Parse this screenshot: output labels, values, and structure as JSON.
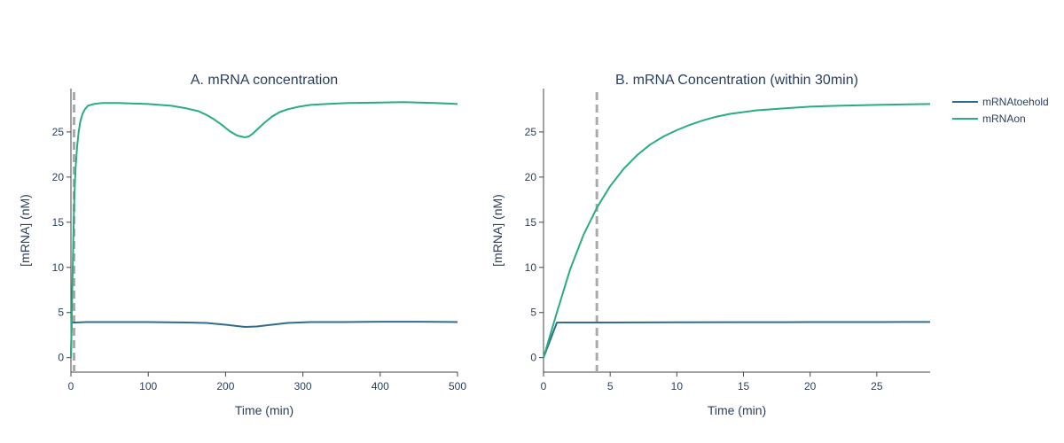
{
  "chart_data": [
    {
      "type": "line",
      "title": "A. mRNA concentration",
      "xlabel": "Time (min)",
      "ylabel": "[mRNA] (nM)",
      "xlim": [
        0,
        500
      ],
      "ylim": [
        -1.6,
        29.8
      ],
      "xticks": [
        0,
        100,
        200,
        300,
        400,
        500
      ],
      "yticks": [
        0,
        5,
        10,
        15,
        20,
        25
      ],
      "xtick_labels": [
        "0",
        "100",
        "200",
        "300",
        "400",
        "500"
      ],
      "ytick_labels": [
        "0",
        "5",
        "10",
        "15",
        "20",
        "25"
      ],
      "vline_x": 4,
      "grid": false,
      "series": [
        {
          "name": "mRNAtoehold",
          "color": "#2e6d8e",
          "x": [
            0,
            1,
            2,
            5,
            20,
            50,
            100,
            150,
            175,
            200,
            225,
            240,
            260,
            280,
            310,
            350,
            400,
            450,
            500
          ],
          "y": [
            0,
            3.9,
            3.9,
            3.9,
            3.95,
            3.95,
            3.95,
            3.9,
            3.85,
            3.65,
            3.4,
            3.45,
            3.65,
            3.85,
            3.95,
            3.95,
            3.98,
            3.98,
            3.95
          ]
        },
        {
          "name": "mRNAon",
          "color": "#2aab84",
          "x": [
            0,
            1,
            2,
            3,
            4,
            5,
            6,
            8,
            10,
            12,
            15,
            18,
            22,
            26,
            30,
            40,
            60,
            100,
            130,
            150,
            165,
            175,
            185,
            195,
            205,
            215,
            225,
            230,
            235,
            240,
            250,
            260,
            270,
            280,
            295,
            310,
            330,
            360,
            400,
            430,
            470,
            500
          ],
          "y": [
            0,
            3.9,
            8.5,
            12.8,
            16.6,
            19.0,
            21.0,
            23.4,
            25.0,
            26.1,
            27.0,
            27.5,
            27.9,
            28.0,
            28.1,
            28.2,
            28.2,
            28.1,
            27.9,
            27.6,
            27.3,
            26.9,
            26.4,
            25.8,
            25.1,
            24.6,
            24.4,
            24.5,
            24.8,
            25.2,
            26.0,
            26.7,
            27.2,
            27.5,
            27.8,
            28.0,
            28.1,
            28.2,
            28.25,
            28.3,
            28.2,
            28.1
          ]
        }
      ]
    },
    {
      "type": "line",
      "title": "B. mRNA Concentration (within 30min)",
      "xlabel": "Time (min)",
      "ylabel": "[mRNA] (nM)",
      "xlim": [
        0,
        29
      ],
      "ylim": [
        -1.6,
        29.8
      ],
      "xticks": [
        0,
        5,
        10,
        15,
        20,
        25
      ],
      "yticks": [
        0,
        5,
        10,
        15,
        20,
        25
      ],
      "xtick_labels": [
        "0",
        "5",
        "10",
        "15",
        "20",
        "25"
      ],
      "ytick_labels": [
        "0",
        "5",
        "10",
        "15",
        "20",
        "25"
      ],
      "vline_x": 4,
      "grid": false,
      "legend": "outside-right",
      "series": [
        {
          "name": "mRNAtoehold",
          "color": "#2e6d8e",
          "x": [
            0,
            1,
            2,
            5,
            10,
            15,
            20,
            25,
            29
          ],
          "y": [
            0,
            3.88,
            3.9,
            3.9,
            3.92,
            3.93,
            3.94,
            3.95,
            3.96
          ]
        },
        {
          "name": "mRNAon",
          "color": "#2aab84",
          "x": [
            0,
            1,
            2,
            3,
            4,
            5,
            6,
            7,
            8,
            9,
            10,
            11,
            12,
            13,
            14,
            15,
            16,
            18,
            20,
            22,
            25,
            29
          ],
          "y": [
            0,
            5.0,
            9.8,
            13.6,
            16.6,
            19.0,
            20.9,
            22.4,
            23.6,
            24.5,
            25.2,
            25.8,
            26.3,
            26.7,
            27.0,
            27.2,
            27.4,
            27.6,
            27.8,
            27.9,
            28.0,
            28.1
          ]
        }
      ]
    }
  ]
}
